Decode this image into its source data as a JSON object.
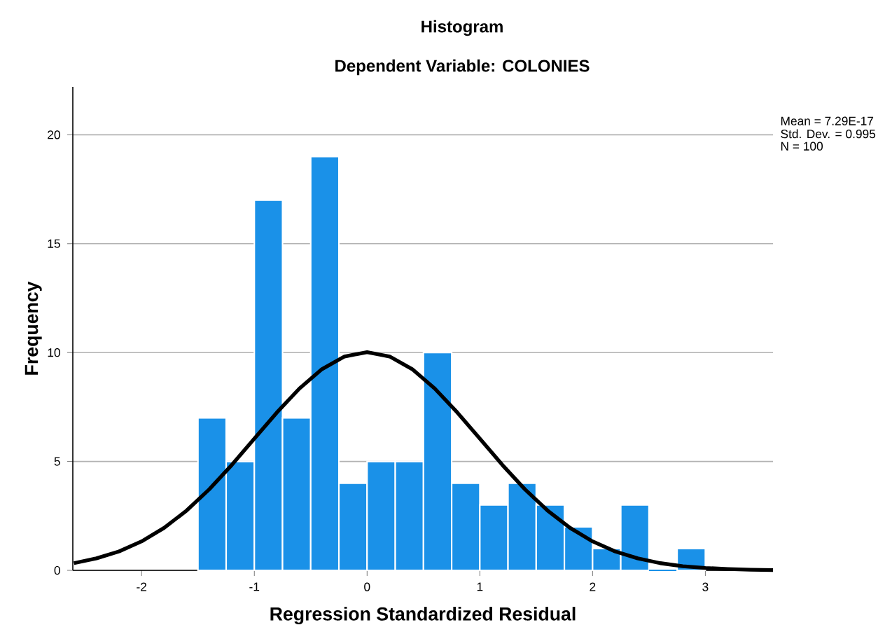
{
  "chart_data": {
    "type": "histogram",
    "title": "Histogram",
    "subtitle": "Dependent Variable: COLONIES",
    "xlabel": "Regression Standardized Residual",
    "ylabel": "Frequency",
    "annotations": [
      "Mean = 7.29E-17",
      "Std. Dev. = 0.995",
      "N = 100"
    ],
    "bins": [
      -1.5,
      -1.25,
      -1.0,
      -0.75,
      -0.5,
      -0.25,
      0,
      0.25,
      0.5,
      0.75,
      1.0,
      1.25,
      1.5,
      1.75,
      2.0,
      2.25,
      2.5,
      2.75,
      3.0
    ],
    "values": [
      7,
      5,
      17,
      7,
      19,
      4,
      5,
      5,
      10,
      4,
      3,
      4,
      3,
      2,
      1,
      3,
      0,
      1
    ],
    "color": "#1a91e8",
    "series": [
      {
        "type": "line",
        "color": "#000000",
        "x": [
          -2.6,
          -2.4,
          -2.2,
          -2.0,
          -1.8,
          -1.6,
          -1.4,
          -1.2,
          -1.0,
          -0.8,
          -0.6,
          -0.4,
          -0.2,
          0,
          0.2,
          0.4,
          0.6,
          0.8,
          1.0,
          1.2,
          1.4,
          1.6,
          1.8,
          2.0,
          2.2,
          2.4,
          2.6,
          2.8,
          3.0,
          3.2,
          3.4,
          3.6
        ],
        "values": [
          0.33,
          0.55,
          0.87,
          1.33,
          1.95,
          2.75,
          3.72,
          4.84,
          6.05,
          7.25,
          8.35,
          9.24,
          9.82,
          10.02,
          9.82,
          9.24,
          8.35,
          7.25,
          6.05,
          4.84,
          3.72,
          2.75,
          1.95,
          1.33,
          0.87,
          0.55,
          0.33,
          0.19,
          0.11,
          0.06,
          0.03,
          0.01
        ]
      }
    ],
    "xlim": [
      -2.61,
      3.6
    ],
    "ylim": [
      0,
      22.2
    ],
    "xticks": [
      -2,
      -1,
      0,
      1,
      2,
      3
    ],
    "yticks": [
      0,
      5,
      10,
      15,
      20
    ],
    "grid": "y"
  }
}
